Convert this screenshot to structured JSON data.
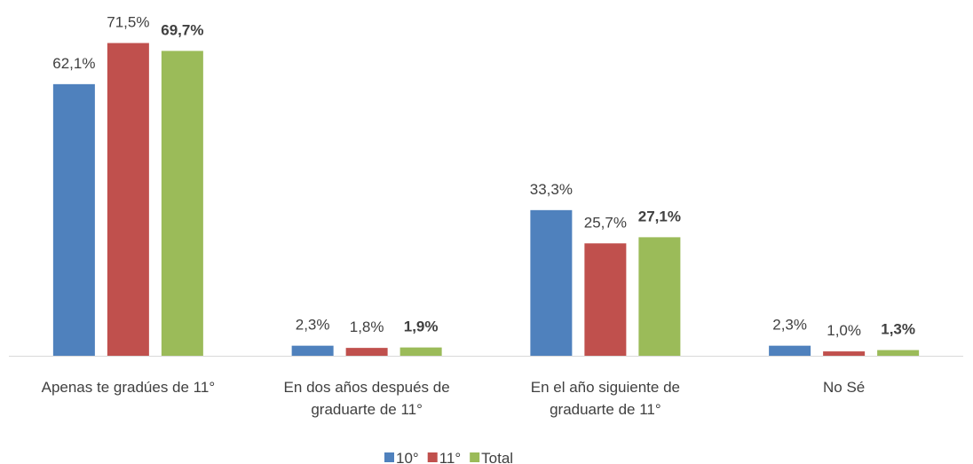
{
  "chart_data": {
    "type": "bar",
    "categories": [
      "Apenas te gradúes de 11°",
      "En dos años después de graduarte de 11°",
      "En el año siguiente de graduarte de 11°",
      "No Sé"
    ],
    "series": [
      {
        "name": "10°",
        "color": "#4f81bd",
        "values": [
          62.1,
          2.3,
          33.3,
          2.3
        ],
        "value_labels": [
          "62,1%",
          "2,3%",
          "33,3%",
          "2,3%"
        ]
      },
      {
        "name": "11°",
        "color": "#c0504d",
        "values": [
          71.5,
          1.8,
          25.7,
          1.0
        ],
        "value_labels": [
          "71,5%",
          "1,8%",
          "25,7%",
          "1,0%"
        ]
      },
      {
        "name": "Total",
        "color": "#9bbb59",
        "values": [
          69.7,
          1.9,
          27.1,
          1.3
        ],
        "value_labels": [
          "69,7%",
          "1,9%",
          "27,1%",
          "1,3%"
        ]
      }
    ],
    "legend": "bottom"
  }
}
